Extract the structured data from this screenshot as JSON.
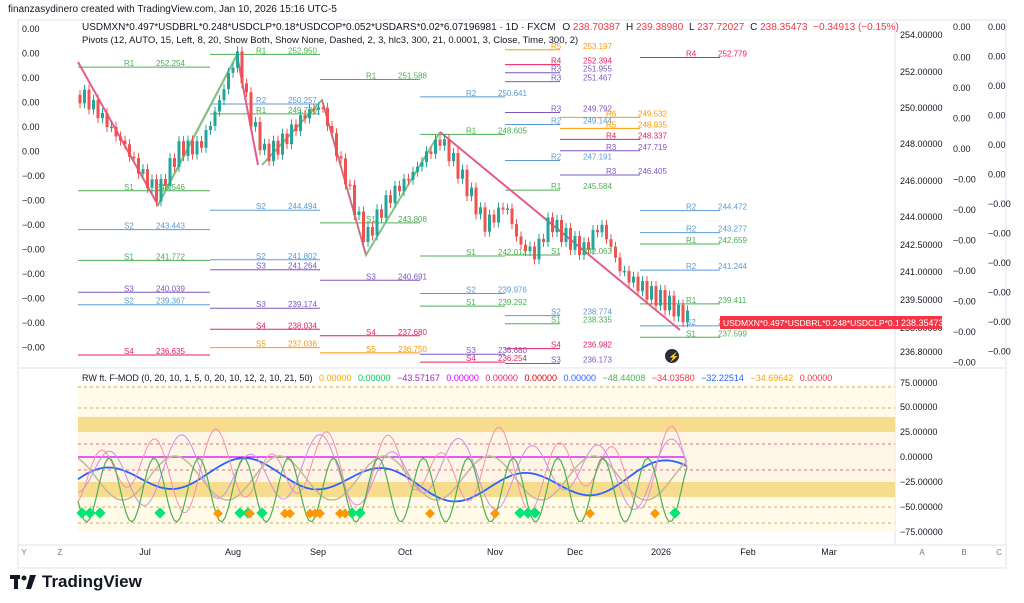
{
  "header": {
    "created_by": "finanzasydinero created with TradingView.com, Jan 10, 2026 15:16 UTC-5",
    "symbol_line": "USDMXN*0.497*USDBRL*0.248*USDCLP*0.18*USDCOP*0.052*USDARS*0.02*6.07196981 · 1D · FXCM",
    "ohlc": {
      "o_label": "O",
      "o": "238.70387",
      "h_label": "H",
      "h": "239.38980",
      "l_label": "L",
      "l": "237.72027",
      "c_label": "C",
      "c": "238.35473",
      "change": "−0.34913 (−0.15%)"
    },
    "pivots_line": "Pivots (12, AUTO, 15, Left, 8, 20, Show Both, Show None, Dashed, 2, 3, hlc3, 300, 21, 0.0001, 3, Close, Time, 300, 2)",
    "osc_line": {
      "name": "RW ft. F-MOD (0, 20, 10, 1, 5, 0, 20, 10, 12, 2, 10, 21, 50)",
      "values": [
        {
          "text": "0.00000",
          "color": "#f7a600"
        },
        {
          "text": "0.00000",
          "color": "#00c853"
        },
        {
          "text": "−43.57167",
          "color": "#9c27b0"
        },
        {
          "text": "0.00000",
          "color": "#d500f9"
        },
        {
          "text": "0.00000",
          "color": "#e91e63"
        },
        {
          "text": "0.00000",
          "color": "#d50000"
        },
        {
          "text": "0.00000",
          "color": "#2962ff"
        },
        {
          "text": "−48.44008",
          "color": "#4caf50"
        },
        {
          "text": "−34.03580",
          "color": "#f23645"
        },
        {
          "text": "−32.22514",
          "color": "#2962ff"
        },
        {
          "text": "−34.69642",
          "color": "#f7a600"
        },
        {
          "text": "0.00000",
          "color": "#f23645"
        }
      ]
    }
  },
  "price_scale": {
    "ticks": [
      "254.00000",
      "252.00000",
      "250.00000",
      "248.00000",
      "246.00000",
      "244.00000",
      "242.50000",
      "241.00000",
      "239.50000",
      "238.00000",
      "236.80000"
    ],
    "last_price_label": "USDMXN*0.497*USDBRL*0.248*USDCLP*0.18...",
    "last_price_value": "238.35473",
    "last_price_color": "#f23645"
  },
  "osc_scale": {
    "ticks": [
      "75.00000",
      "50.00000",
      "25.00000",
      "0.00000",
      "−25.00000",
      "−50.00000",
      "−75.00000"
    ]
  },
  "left_scale": {
    "labels": [
      "0.00",
      "0.00",
      "0.00",
      "0.00",
      "0.00",
      "0.00",
      "−0.00",
      "−0.00",
      "−0.00",
      "−0.00",
      "−0.00",
      "−0.00",
      "−0.00",
      "−0.00"
    ]
  },
  "right_extra_scales": {
    "col1": [
      "0.00",
      "0.00",
      "0.00",
      "0.00",
      "0.00",
      "−0.00",
      "−0.00",
      "−0.00",
      "−0.00",
      "−0.00",
      "−0.00",
      "−0.00"
    ],
    "col2": [
      "0.00",
      "0.00",
      "0.00",
      "0.00",
      "0.00",
      "0.00",
      "−0.00",
      "−0.00",
      "−0.00",
      "−0.00",
      "−0.00",
      "−0.00"
    ]
  },
  "time_axis": {
    "labels": [
      "Jul",
      "Aug",
      "Sep",
      "Oct",
      "Nov",
      "Dec",
      "2026",
      "Feb",
      "Mar"
    ],
    "small_left": [
      "Y",
      "Z"
    ],
    "small_right": [
      "A",
      "B",
      "C"
    ]
  },
  "pivot_levels": [
    {
      "label": "R1",
      "value": "252.254",
      "color": "#4caf50"
    },
    {
      "label": "S1",
      "value": "245.546",
      "color": "#4caf50"
    },
    {
      "label": "S2",
      "value": "243.443",
      "color": "#5b9bd5"
    },
    {
      "label": "S1",
      "value": "241.772",
      "color": "#4caf50"
    },
    {
      "label": "S3",
      "value": "240.039",
      "color": "#7e57c2"
    },
    {
      "label": "S2",
      "value": "239.367",
      "color": "#5b9bd5"
    },
    {
      "label": "S4",
      "value": "236.635",
      "color": "#e91e63"
    },
    {
      "label": "R1",
      "value": "252.950",
      "color": "#4caf50"
    },
    {
      "label": "R2",
      "value": "250.257",
      "color": "#5b9bd5"
    },
    {
      "label": "R1",
      "value": "249.720",
      "color": "#4caf50"
    },
    {
      "label": "S2",
      "value": "244.494",
      "color": "#5b9bd5"
    },
    {
      "label": "S2",
      "value": "241.802",
      "color": "#5b9bd5"
    },
    {
      "label": "S3",
      "value": "241.264",
      "color": "#7e57c2"
    },
    {
      "label": "S3",
      "value": "239.174",
      "color": "#7e57c2"
    },
    {
      "label": "S4",
      "value": "238.034",
      "color": "#e91e63"
    },
    {
      "label": "S5",
      "value": "237.036",
      "color": "#ff9800"
    },
    {
      "label": "R1",
      "value": "251.588",
      "color": "#4caf50"
    },
    {
      "label": "S1",
      "value": "243.808",
      "color": "#4caf50"
    },
    {
      "label": "S3",
      "value": "240.691",
      "color": "#7e57c2"
    },
    {
      "label": "S4",
      "value": "237.680",
      "color": "#e91e63"
    },
    {
      "label": "S5",
      "value": "236.750",
      "color": "#ff9800"
    },
    {
      "label": "R2",
      "value": "250.641",
      "color": "#5b9bd5"
    },
    {
      "label": "R1",
      "value": "248.605",
      "color": "#4caf50"
    },
    {
      "label": "S1",
      "value": "242.012",
      "color": "#4caf50"
    },
    {
      "label": "S2",
      "value": "239.976",
      "color": "#5b9bd5"
    },
    {
      "label": "S1",
      "value": "239.292",
      "color": "#4caf50"
    },
    {
      "label": "S3",
      "value": "236.680",
      "color": "#7e57c2"
    },
    {
      "label": "S4",
      "value": "236.254",
      "color": "#e91e63"
    },
    {
      "label": "R3",
      "value": "251.467",
      "color": "#7e57c2"
    },
    {
      "label": "R2",
      "value": "249.144",
      "color": "#5b9bd5"
    },
    {
      "label": "S1",
      "value": "242.063",
      "color": "#4caf50"
    },
    {
      "label": "S2",
      "value": "238.774",
      "color": "#5b9bd5"
    },
    {
      "label": "S1",
      "value": "238.335",
      "color": "#4caf50"
    },
    {
      "label": "S4",
      "value": "236.982",
      "color": "#e91e63"
    },
    {
      "label": "R5",
      "value": "253.197",
      "color": "#ff9800"
    },
    {
      "label": "R4",
      "value": "252.394",
      "color": "#e91e63"
    },
    {
      "label": "R3",
      "value": "251.955",
      "color": "#7e57c2"
    },
    {
      "label": "R3",
      "value": "249.792",
      "color": "#7e57c2"
    },
    {
      "label": "R2",
      "value": "247.191",
      "color": "#5b9bd5"
    },
    {
      "label": "R1",
      "value": "245.584",
      "color": "#4caf50"
    },
    {
      "label": "S3",
      "value": "236.173",
      "color": "#7e57c2"
    },
    {
      "label": "R4",
      "value": "252.779",
      "color": "#e91e63"
    },
    {
      "label": "R6",
      "value": "249.532",
      "color": "#ff9800"
    },
    {
      "label": "R5",
      "value": "248.935",
      "color": "#ff9800"
    },
    {
      "label": "R4",
      "value": "248.337",
      "color": "#e91e63"
    },
    {
      "label": "R3",
      "value": "247.719",
      "color": "#7e57c2"
    },
    {
      "label": "R3",
      "value": "246.405",
      "color": "#7e57c2"
    },
    {
      "label": "R2",
      "value": "244.472",
      "color": "#5b9bd5"
    },
    {
      "label": "R2",
      "value": "243.277",
      "color": "#5b9bd5"
    },
    {
      "label": "R1",
      "value": "242.659",
      "color": "#4caf50"
    },
    {
      "label": "R2",
      "value": "241.244",
      "color": "#5b9bd5"
    },
    {
      "label": "R1",
      "value": "239.411",
      "color": "#4caf50"
    },
    {
      "label": "S2",
      "value": "238.217",
      "color": "#5b9bd5"
    },
    {
      "label": "S1",
      "value": "237.599",
      "color": "#4caf50"
    }
  ],
  "brand": {
    "name": "TradingView"
  }
}
